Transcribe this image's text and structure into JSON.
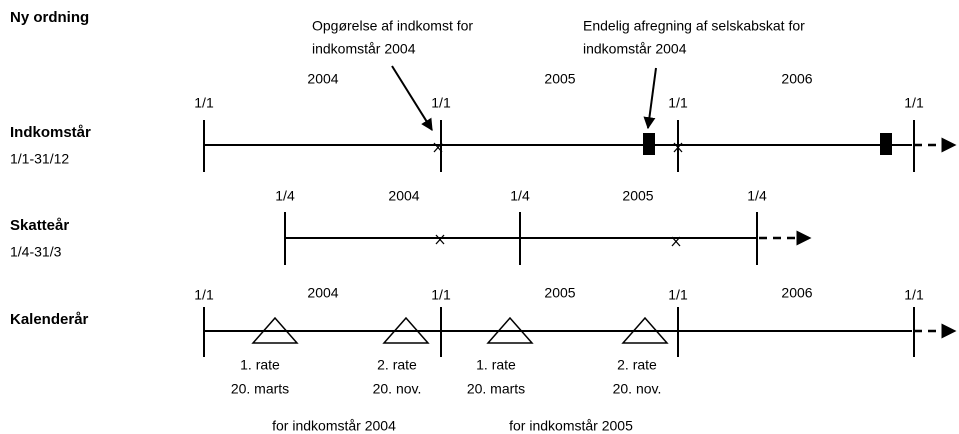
{
  "title": "Ny ordning",
  "annotations": [
    {
      "lines": [
        "Opgørelse af indkomst for",
        "indkomstår 2004"
      ]
    },
    {
      "lines": [
        "Endelig afregning af selskabskat for",
        "indkomstår 2004"
      ]
    }
  ],
  "rows": [
    {
      "label": "Indkomstår",
      "period": "1/1-31/12",
      "ticks": [
        "1/1",
        "1/1",
        "1/1",
        "1/1"
      ],
      "years": [
        "2004",
        "2005",
        "2006"
      ]
    },
    {
      "label": "Skatteår",
      "period": "1/4-31/3",
      "ticks": [
        "1/4",
        "1/4",
        "1/4"
      ],
      "years": [
        "2004",
        "2005"
      ]
    },
    {
      "label": "Kalenderår",
      "ticks": [
        "1/1",
        "1/1",
        "1/1",
        "1/1"
      ],
      "years": [
        "2004",
        "2005",
        "2006"
      ]
    }
  ],
  "rates": [
    {
      "name": "1. rate",
      "date": "20. marts"
    },
    {
      "name": "2. rate",
      "date": "20. nov."
    },
    {
      "name": "1. rate",
      "date": "20. marts"
    },
    {
      "name": "2. rate",
      "date": "20. nov."
    }
  ],
  "rate_groups": [
    "for indkomstår 2004",
    "for indkomstår 2005"
  ]
}
